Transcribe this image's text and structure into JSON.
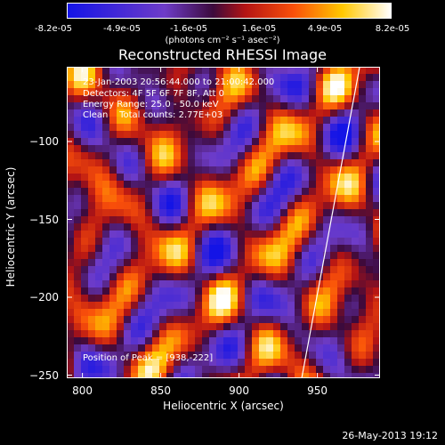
{
  "chart_data": {
    "type": "heatmap",
    "title": "Reconstructed RHESSI Image",
    "xlabel": "Heliocentric X (arcsec)",
    "ylabel": "Heliocentric Y (arcsec)",
    "xlim": [
      790,
      990
    ],
    "ylim": [
      -252,
      -52
    ],
    "x_ticks": [
      800,
      850,
      900,
      950
    ],
    "y_ticks": [
      -100,
      -150,
      -200,
      -250
    ],
    "colorbar": {
      "ticks": [
        "-8.2e-05",
        "-4.9e-05",
        "-1.6e-05",
        "1.6e-05",
        "4.9e-05",
        "8.2e-05"
      ],
      "units": "(photons cm⁻² s⁻¹ asec⁻²)",
      "range": [
        -8.2e-05,
        8.2e-05
      ]
    },
    "annotations": [
      "23-Jan-2003 20:56:44.000 to 21:00:42.000",
      "Detectors: 4F 5F 6F 7F 8F, Att 0",
      "Energy Range: 25.0 - 50.0 keV",
      "Clean    Total counts: 2.77E+03",
      "Position of Peak = [938,-222]"
    ],
    "limb_line": [
      [
        940,
        -252
      ],
      [
        977,
        -52
      ]
    ],
    "peak": [
      938,
      -222
    ],
    "footer": "26-May-2013 19:12"
  }
}
